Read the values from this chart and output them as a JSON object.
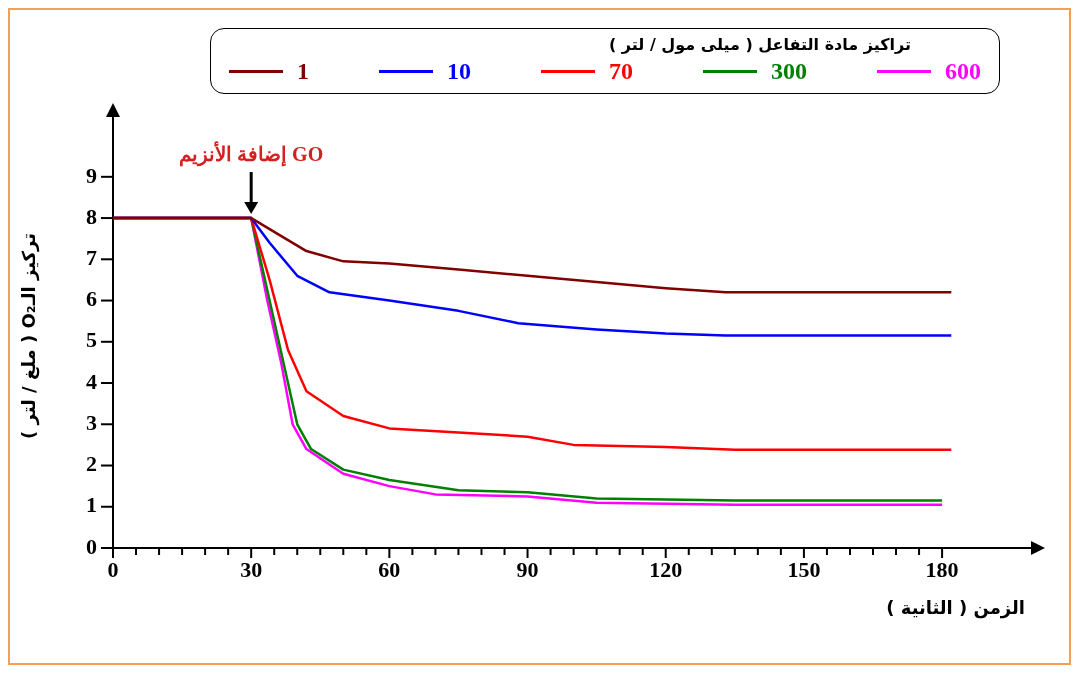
{
  "chart_data": {
    "type": "line",
    "legend_title": "تراكيز مادة التفاعل ( ميلى مول / لتر )",
    "xlabel": "الزمن ( الثانية )",
    "ylabel": "تركيز الـO₂ ( ملغ / لتر )",
    "xlim": [
      0,
      198
    ],
    "ylim": [
      0,
      10.3
    ],
    "xticks": [
      0,
      {
        "value": 5,
        "label": null
      },
      {
        "value": 10,
        "label": null
      },
      {
        "value": 15,
        "label": null
      },
      {
        "value": 20,
        "label": null
      },
      {
        "value": 25,
        "label": null
      },
      30,
      {
        "value": 35,
        "label": null
      },
      {
        "value": 40,
        "label": null
      },
      {
        "value": 45,
        "label": null
      },
      {
        "value": 50,
        "label": null
      },
      {
        "value": 55,
        "label": null
      },
      60,
      {
        "value": 65,
        "label": null
      },
      {
        "value": 70,
        "label": null
      },
      {
        "value": 75,
        "label": null
      },
      {
        "value": 80,
        "label": null
      },
      {
        "value": 85,
        "label": null
      },
      90,
      {
        "value": 95,
        "label": null
      },
      {
        "value": 100,
        "label": null
      },
      {
        "value": 105,
        "label": null
      },
      {
        "value": 110,
        "label": null
      },
      {
        "value": 115,
        "label": null
      },
      120,
      {
        "value": 125,
        "label": null
      },
      {
        "value": 130,
        "label": null
      },
      {
        "value": 135,
        "label": null
      },
      {
        "value": 140,
        "label": null
      },
      {
        "value": 145,
        "label": null
      },
      150,
      {
        "value": 155,
        "label": null
      },
      {
        "value": 160,
        "label": null
      },
      {
        "value": 165,
        "label": null
      },
      {
        "value": 170,
        "label": null
      },
      {
        "value": 175,
        "label": null
      },
      180
    ],
    "yticks": [
      0,
      1,
      2,
      3,
      4,
      5,
      6,
      7,
      8,
      9
    ],
    "grid": false,
    "legend": "top",
    "marker": "none",
    "line_style": "solid",
    "annotations": [
      {
        "text": "إضافة الأنزيم GO",
        "x": 30,
        "y": 8
      }
    ],
    "series": [
      {
        "name": "1",
        "color": "#800000",
        "x": [
          0,
          30,
          36,
          42,
          50,
          60,
          75,
          90,
          105,
          120,
          133,
          182
        ],
        "values": [
          8,
          8,
          7.6,
          7.2,
          6.95,
          6.9,
          6.75,
          6.6,
          6.45,
          6.3,
          6.2,
          6.2
        ]
      },
      {
        "name": "10",
        "color": "#0000ff",
        "x": [
          0,
          30,
          34,
          40,
          47,
          60,
          75,
          88,
          105,
          120,
          133,
          182
        ],
        "values": [
          8,
          8,
          7.4,
          6.6,
          6.2,
          6,
          5.75,
          5.45,
          5.3,
          5.2,
          5.15,
          5.15
        ]
      },
      {
        "name": "70",
        "color": "#ff0000",
        "x": [
          0,
          30,
          34,
          38,
          42,
          50,
          60,
          75,
          90,
          100,
          120,
          135,
          182
        ],
        "values": [
          8,
          8,
          6.5,
          4.8,
          3.8,
          3.2,
          2.9,
          2.8,
          2.7,
          2.5,
          2.45,
          2.38,
          2.38
        ]
      },
      {
        "name": "300",
        "color": "#008000",
        "x": [
          0,
          30,
          34,
          37,
          40,
          43,
          50,
          60,
          75,
          90,
          105,
          135,
          180
        ],
        "values": [
          8,
          8,
          6,
          4.5,
          3,
          2.4,
          1.9,
          1.65,
          1.4,
          1.35,
          1.2,
          1.15,
          1.15
        ]
      },
      {
        "name": "600",
        "color": "#ff00ff",
        "x": [
          0,
          30,
          33.5,
          36.5,
          39,
          42,
          50,
          60,
          70,
          90,
          105,
          135,
          180
        ],
        "values": [
          8,
          8,
          6,
          4.5,
          3,
          2.4,
          1.8,
          1.5,
          1.3,
          1.25,
          1.1,
          1.05,
          1.05
        ]
      }
    ]
  }
}
